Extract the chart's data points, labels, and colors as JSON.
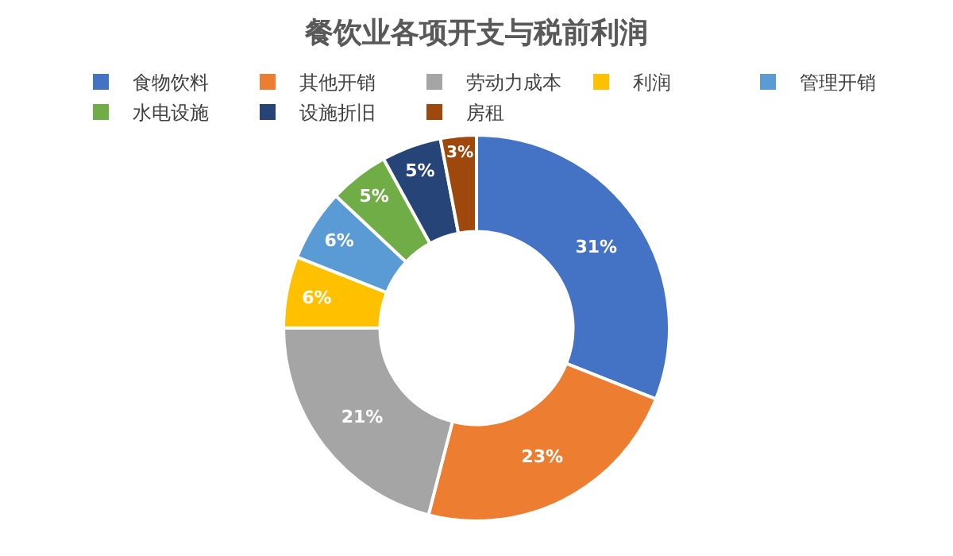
{
  "chart_data": {
    "type": "donut",
    "title": "餐饮业各项开支与税前利润",
    "categories": [
      "食物饮料",
      "其他开销",
      "劳动力成本",
      "利润",
      "管理开销",
      "水电设施",
      "设施折旧",
      "房租"
    ],
    "values": [
      31,
      23,
      21,
      6,
      6,
      5,
      5,
      3
    ],
    "value_labels": [
      "31%",
      "23%",
      "21%",
      "6%",
      "6%",
      "5%",
      "5%",
      "3%"
    ],
    "colors": [
      "#4472c4",
      "#ed7d31",
      "#a5a5a5",
      "#ffc000",
      "#5b9bd5",
      "#70ad47",
      "#264478",
      "#9e480e"
    ],
    "legend": "top"
  }
}
